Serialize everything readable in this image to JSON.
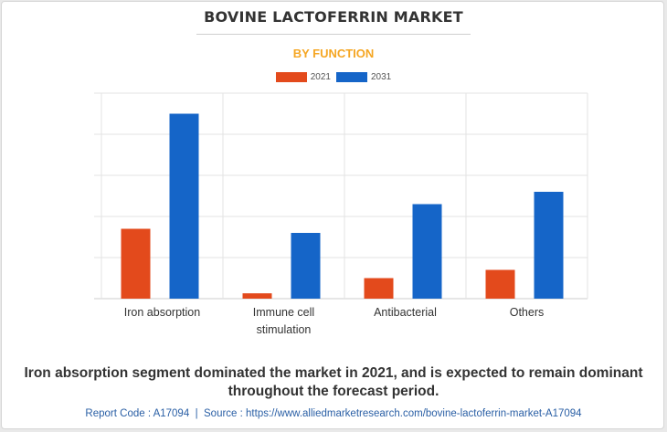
{
  "title": "BOVINE LACTOFERRIN MARKET",
  "subtitle": "BY FUNCTION",
  "caption": {
    "line1": "Iron absorption segment dominated the market in 2021, and is expected to remain dominant",
    "line2": "throughout the forecast period."
  },
  "footer": {
    "report_code": "Report Code : A17094",
    "separator": "|",
    "source": "Source : https://www.alliedmarketresearch.com/bovine-lactoferrin-market-A17094"
  },
  "colors": {
    "series_2021": "#e34a1c",
    "series_2031": "#1565c8",
    "title": "#333333",
    "subtitle": "#f5a623",
    "footer": "#2a5fa5"
  },
  "chart_data": {
    "type": "bar",
    "title": "BOVINE LACTOFERRIN MARKET",
    "subtitle": "BY FUNCTION",
    "categories": [
      [
        "Iron absorption"
      ],
      [
        "Immune cell",
        "stimulation"
      ],
      [
        "Antibacterial"
      ],
      [
        "Others"
      ]
    ],
    "series": [
      {
        "name": "2021",
        "values": [
          1.7,
          0.13,
          0.5,
          0.7
        ]
      },
      {
        "name": "2031",
        "values": [
          4.5,
          1.6,
          2.3,
          2.6
        ]
      }
    ],
    "ylim": [
      0,
      5
    ],
    "gridlines": [
      0,
      1,
      2,
      3,
      4,
      5
    ],
    "legend": "top-center",
    "grid": true
  }
}
